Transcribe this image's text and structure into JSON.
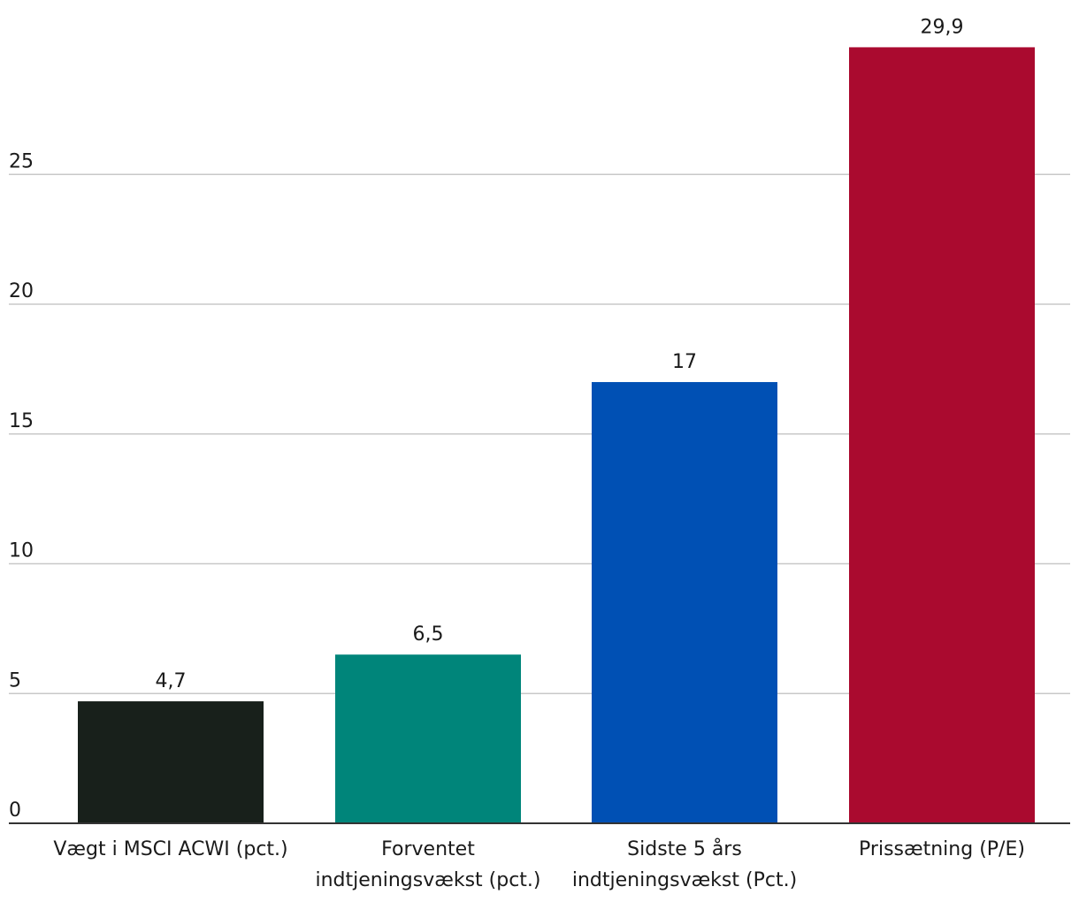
{
  "chart_data": {
    "type": "bar",
    "title": "",
    "xlabel": "",
    "ylabel": "",
    "ylim": [
      0,
      30
    ],
    "yticks": [
      0,
      5,
      10,
      15,
      20,
      25
    ],
    "grid": true,
    "categories": [
      [
        "Vægt i MSCI ACWI (pct.)"
      ],
      [
        "Forventet",
        "indtjeningsvækst (pct.)"
      ],
      [
        "Sidste 5 års",
        "indtjeningsvækst (Pct.)"
      ],
      [
        "Prissætning (P/E)"
      ]
    ],
    "values": [
      4.7,
      6.5,
      17,
      29.9
    ],
    "value_labels": [
      "4,7",
      "6,5",
      "17",
      "29,9"
    ],
    "colors": [
      "#18201b",
      "#00857a",
      "#0050b4",
      "#aa0a2f"
    ]
  }
}
